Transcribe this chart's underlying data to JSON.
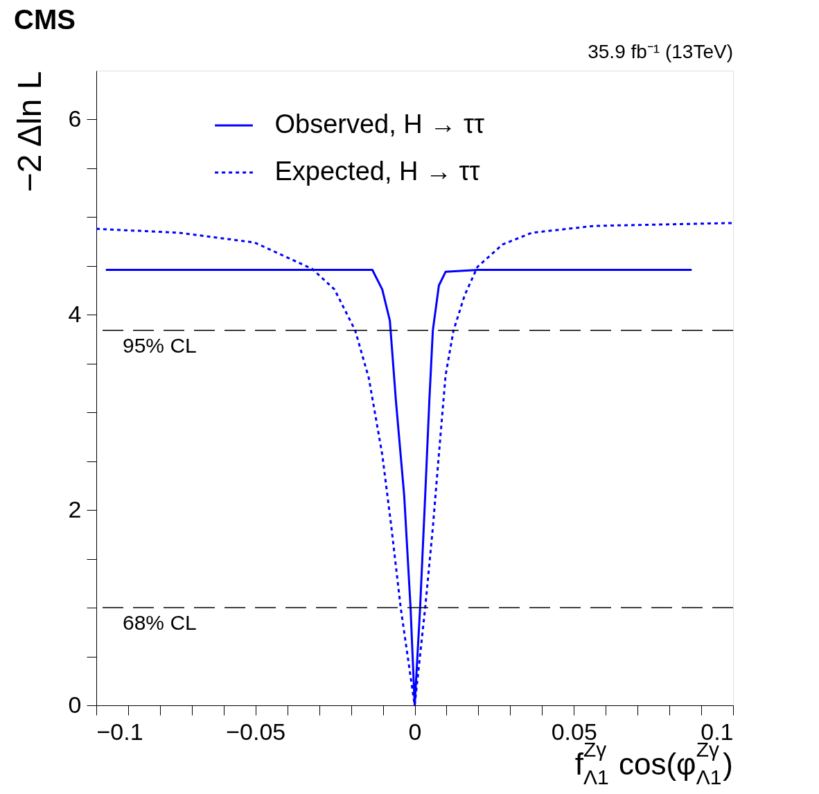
{
  "chart_data": {
    "type": "line",
    "title": "CMS",
    "xlabel": "f$^{Zγ}$$_{Λ1}$ cos(φ$^{Zγ}$$_{Λ1}$)",
    "ylabel": "−2 Δln L",
    "annotations": [
      "35.9 fb⁻¹ (13TeV)"
    ],
    "xlim": [
      -0.1,
      0.1
    ],
    "ylim": [
      0,
      6.5
    ],
    "xticks": [
      {
        "value": -0.1,
        "label": "−0.1"
      },
      {
        "value": -0.09,
        "label": null
      },
      {
        "value": -0.08,
        "label": null
      },
      {
        "value": -0.07,
        "label": null
      },
      {
        "value": -0.06,
        "label": null
      },
      {
        "value": -0.05,
        "label": "−0.05"
      },
      {
        "value": -0.04,
        "label": null
      },
      {
        "value": -0.03,
        "label": null
      },
      {
        "value": -0.02,
        "label": null
      },
      {
        "value": -0.01,
        "label": null
      },
      0,
      {
        "value": 0.01,
        "label": null
      },
      {
        "value": 0.02,
        "label": null
      },
      {
        "value": 0.03,
        "label": null
      },
      {
        "value": 0.04,
        "label": null
      },
      0.05,
      {
        "value": 0.06,
        "label": null
      },
      {
        "value": 0.07,
        "label": null
      },
      {
        "value": 0.08,
        "label": null
      },
      {
        "value": 0.09,
        "label": null
      },
      0.1
    ],
    "yticks": [
      0,
      {
        "value": 0.5,
        "label": null
      },
      {
        "value": 1,
        "label": null
      },
      {
        "value": 1.5,
        "label": null
      },
      2,
      {
        "value": 2.5,
        "label": null
      },
      {
        "value": 3,
        "label": null
      },
      {
        "value": 3.5,
        "label": null
      },
      4,
      {
        "value": 4.5,
        "label": null
      },
      {
        "value": 5,
        "label": null
      },
      {
        "value": 5.5,
        "label": null
      },
      6
    ],
    "grid": false,
    "legend": "top",
    "marker": "none",
    "ref_lines": [
      {
        "axis": "y",
        "value": 3.84,
        "label": "95% CL",
        "color": "#000000",
        "line_style": "dashed"
      },
      {
        "axis": "y",
        "value": 1,
        "label": "68% CL",
        "color": "#000000",
        "line_style": "dashed"
      }
    ],
    "series": [
      {
        "name": "Observed, H → ττ",
        "color": "#0000ff",
        "line_style": "solid",
        "x": [
          -0.097,
          -0.08,
          -0.06,
          -0.04,
          -0.02,
          -0.0133,
          -0.0102,
          -0.0078,
          -0.0059,
          -0.0033,
          -0.0013,
          0,
          0.0017,
          0.0033,
          0.0046,
          0.0057,
          0.0076,
          0.0097,
          0.02,
          0.04,
          0.06,
          0.087
        ],
        "values": [
          4.46,
          4.46,
          4.46,
          4.46,
          4.46,
          4.46,
          4.26,
          3.94,
          3.12,
          2.15,
          1.0,
          0,
          1.0,
          2.15,
          3.12,
          3.84,
          4.3,
          4.44,
          4.46,
          4.46,
          4.46,
          4.46
        ]
      },
      {
        "name": "Expected, H → ττ",
        "color": "#0000ff",
        "line_style": "dotted",
        "x": [
          -0.1,
          -0.074,
          -0.0503,
          -0.0322,
          -0.0252,
          -0.0187,
          -0.0144,
          -0.0102,
          -0.0073,
          -0.0044,
          0,
          0.0033,
          0.0057,
          0.0076,
          0.0097,
          0.0122,
          0.0157,
          0.0197,
          0.0276,
          0.0368,
          0.0564,
          0.1
        ],
        "values": [
          4.88,
          4.84,
          4.74,
          4.47,
          4.26,
          3.84,
          3.35,
          2.57,
          1.82,
          1.0,
          0,
          1.0,
          1.82,
          2.57,
          3.38,
          3.84,
          4.2,
          4.49,
          4.72,
          4.84,
          4.91,
          4.94
        ]
      }
    ]
  }
}
